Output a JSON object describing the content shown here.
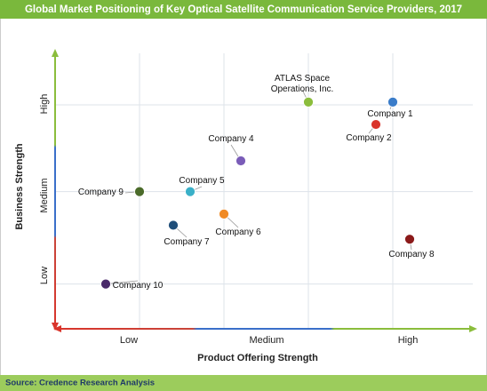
{
  "chart_data": {
    "type": "scatter",
    "title": "Global Market Positioning of Key Optical Satellite Communication Service Providers, 2017",
    "x_label": "Product Offering Strength",
    "y_label": "Business Strength",
    "x_levels": [
      "Low",
      "Medium",
      "High"
    ],
    "y_levels": [
      "Low",
      "Medium",
      "High"
    ],
    "xlim": [
      0,
      10
    ],
    "ylim": [
      0,
      10
    ],
    "xticks": [
      2,
      4,
      6,
      8
    ],
    "yticks": [
      1.6,
      4.9,
      8.0
    ],
    "grid": true,
    "points": [
      {
        "name": "Company 1",
        "color": "#3a7cc9",
        "x": 8.0,
        "y": 8.1
      },
      {
        "name": "Company 2",
        "color": "#d9342b",
        "x": 7.6,
        "y": 7.3
      },
      {
        "name": "ATLAS Space Operations, Inc.",
        "color": "#8bbd3c",
        "x": 6.0,
        "y": 8.1
      },
      {
        "name": "Company 4",
        "color": "#7a5cb8",
        "x": 4.4,
        "y": 6.0
      },
      {
        "name": "Company 5",
        "color": "#3ab0c8",
        "x": 3.2,
        "y": 4.9
      },
      {
        "name": "Company 9",
        "color": "#4b6b2a",
        "x": 2.0,
        "y": 4.9
      },
      {
        "name": "Company 6",
        "color": "#f08a24",
        "x": 4.0,
        "y": 4.1
      },
      {
        "name": "Company 7",
        "color": "#1f4e79",
        "x": 2.8,
        "y": 3.7
      },
      {
        "name": "Company 8",
        "color": "#8b1a1a",
        "x": 8.4,
        "y": 3.2
      },
      {
        "name": "Company 10",
        "color": "#4a2a6a",
        "x": 1.2,
        "y": 1.6
      }
    ],
    "source": "Source: Credence Research Analysis"
  }
}
